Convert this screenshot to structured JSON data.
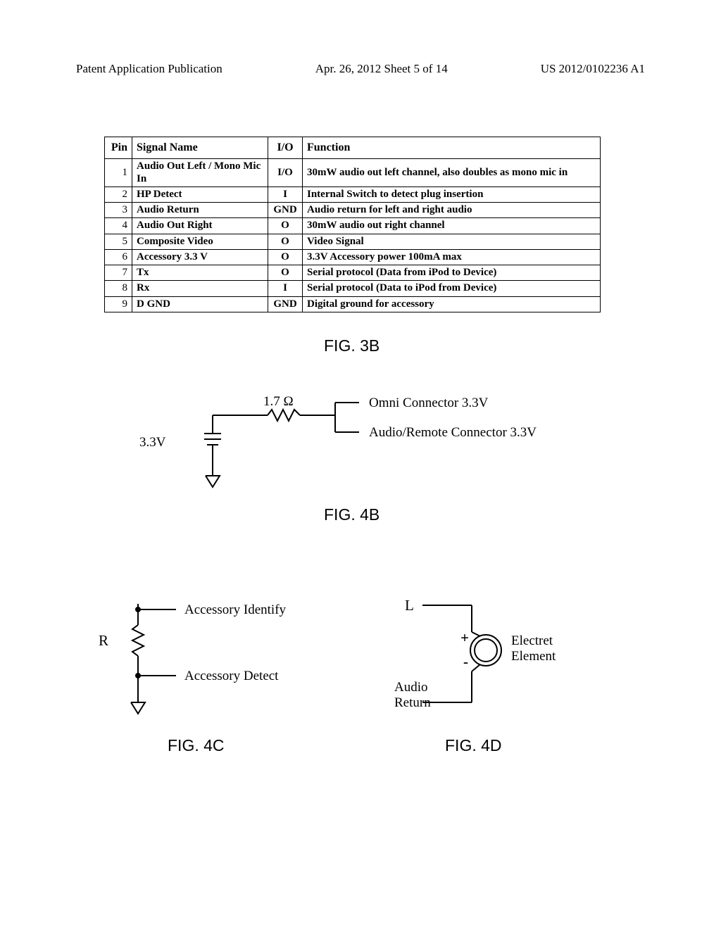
{
  "header": {
    "left": "Patent Application Publication",
    "mid": "Apr. 26, 2012  Sheet 5 of 14",
    "right": "US 2012/0102236 A1"
  },
  "pin_table": {
    "columns": [
      "Pin",
      "Signal Name",
      "I/O",
      "Function"
    ],
    "rows": [
      [
        "1",
        "Audio Out Left / Mono Mic In",
        "I/O",
        "30mW audio out left channel, also doubles as mono mic in"
      ],
      [
        "2",
        "HP Detect",
        "I",
        "Internal Switch to detect plug insertion"
      ],
      [
        "3",
        "Audio Return",
        "GND",
        "Audio return for left and right audio"
      ],
      [
        "4",
        "Audio Out Right",
        "O",
        "30mW audio out right channel"
      ],
      [
        "5",
        "Composite Video",
        "O",
        "Video Signal"
      ],
      [
        "6",
        "Accessory 3.3 V",
        "O",
        "3.3V Accessory power 100mA max"
      ],
      [
        "7",
        "Tx",
        "O",
        "Serial protocol (Data from iPod to Device)"
      ],
      [
        "8",
        "Rx",
        "I",
        "Serial protocol (Data to iPod from Device)"
      ],
      [
        "9",
        "D GND",
        "GND",
        "Digital ground for accessory"
      ]
    ],
    "border_color": "#000000",
    "header_fontsize": 16,
    "body_fontsize": 15
  },
  "figures": {
    "f3b": "FIG. 3B",
    "f4b": "FIG. 4B",
    "f4c": "FIG. 4C",
    "f4d": "FIG. 4D"
  },
  "fig4b": {
    "v_source": "3.3V",
    "resistor": "1.7 Ω",
    "out1": "Omni Connector 3.3V",
    "out2": "Audio/Remote Connector 3.3V",
    "line_color": "#000000",
    "line_width": 2
  },
  "fig4c": {
    "res_label": "R",
    "top_label": "Accessory Identify",
    "bot_label": "Accessory Detect",
    "line_color": "#000000",
    "line_width": 2
  },
  "fig4d": {
    "l_label": "L",
    "plus": "+",
    "minus": "-",
    "elem_label1": "Electret",
    "elem_label2": "Element",
    "ret_label1": "Audio",
    "ret_label2": "Return",
    "line_color": "#000000",
    "line_width": 2
  },
  "colors": {
    "background": "#ffffff",
    "text": "#000000"
  }
}
